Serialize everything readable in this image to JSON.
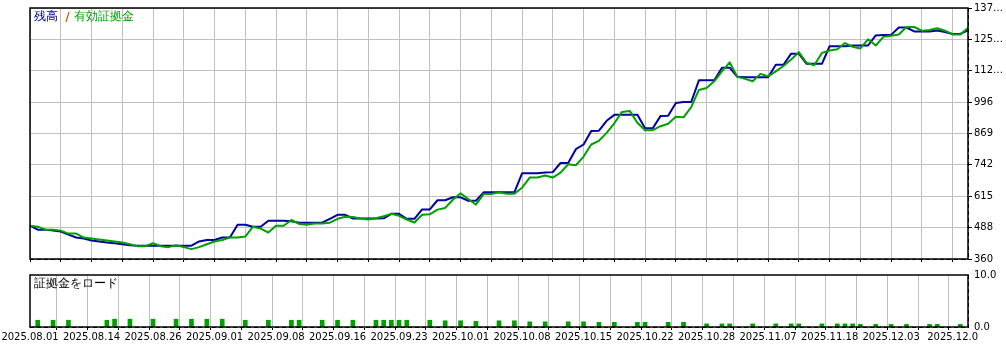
{
  "chart_data": [
    {
      "type": "line",
      "legend": "top left",
      "tick_labels": "y",
      "grid": true,
      "marker": "none",
      "line_style": "solid",
      "categories": [
        "2025.08.01",
        null,
        null,
        null,
        null,
        null,
        null,
        null,
        "2025.08.14",
        null,
        null,
        null,
        null,
        null,
        null,
        null,
        "2025.08.26",
        null,
        null,
        null,
        null,
        null,
        null,
        null,
        "2025.09.01",
        null,
        null,
        null,
        null,
        null,
        null,
        null,
        "2025.09.08",
        null,
        null,
        null,
        null,
        null,
        null,
        null,
        "2025.09.16",
        null,
        null,
        null,
        null,
        null,
        null,
        null,
        "2025.09.23",
        null,
        null,
        null,
        null,
        null,
        null,
        null,
        "2025.10.01",
        null,
        null,
        null,
        null,
        null,
        null,
        null,
        "2025.10.08",
        null,
        null,
        null,
        null,
        null,
        null,
        null,
        "2025.10.15",
        null,
        null,
        null,
        null,
        null,
        null,
        null,
        "2025.10.22",
        null,
        null,
        null,
        null,
        null,
        null,
        null,
        "2025.10.28",
        null,
        null,
        null,
        null,
        null,
        null,
        null,
        "2025.11.07",
        null,
        null,
        null,
        null,
        null,
        null,
        null,
        "2025.11.18",
        null,
        null,
        null,
        null,
        null,
        null,
        null,
        "2025.12.03",
        null,
        null,
        null,
        null,
        null,
        null,
        null,
        "2025.12.0",
        null,
        null
      ],
      "ylim": [
        360,
        1377
      ],
      "yticks": [
        360,
        488,
        615,
        742,
        869,
        996,
        {
          "value": 1123,
          "label": "112…"
        },
        {
          "value": 1250,
          "label": "125…"
        },
        {
          "value": 1377,
          "label": "137…"
        }
      ],
      "series": [
        {
          "name": "有効証拠金",
          "color": "#00a000",
          "values": [
            495,
            491,
            479,
            479,
            475,
            463,
            463,
            447,
            443,
            439,
            435,
            431,
            427,
            420,
            412,
            412,
            424,
            412,
            408,
            416,
            408,
            400,
            408,
            420,
            431,
            437,
            447,
            447,
            451,
            491,
            483,
            467,
            495,
            495,
            518,
            502,
            499,
            504,
            504,
            507,
            523,
            531,
            530,
            524,
            520,
            525,
            533,
            543,
            535,
            520,
            508,
            539,
            541,
            560,
            567,
            600,
            626,
            603,
            580,
            623,
            623,
            630,
            624,
            624,
            649,
            690,
            690,
            698,
            690,
            710,
            744,
            740,
            775,
            824,
            839,
            871,
            910,
            956,
            960,
            912,
            882,
            882,
            898,
            908,
            936,
            934,
            975,
            1045,
            1053,
            1080,
            1120,
            1157,
            1098,
            1090,
            1080,
            1110,
            1100,
            1120,
            1142,
            1168,
            1198,
            1155,
            1145,
            1195,
            1205,
            1210,
            1235,
            1220,
            1213,
            1250,
            1225,
            1260,
            1265,
            1270,
            1300,
            1300,
            1285,
            1288,
            1295,
            1285,
            1270,
            1270,
            1296
          ]
        },
        {
          "name": "残高",
          "color": "#0000a0",
          "values": [
            495,
            479,
            479,
            475,
            471,
            459,
            447,
            443,
            435,
            431,
            427,
            424,
            420,
            416,
            414,
            414,
            414,
            414,
            414,
            414,
            414,
            414,
            431,
            437,
            437,
            447,
            447,
            499,
            499,
            491,
            491,
            515,
            515,
            515,
            513,
            507,
            507,
            507,
            507,
            523,
            539,
            539,
            524,
            524,
            524,
            524,
            525,
            543,
            543,
            523,
            523,
            561,
            561,
            598,
            598,
            610,
            610,
            596,
            596,
            630,
            630,
            630,
            630,
            630,
            707,
            707,
            707,
            710,
            712,
            749,
            749,
            805,
            824,
            879,
            880,
            920,
            944,
            944,
            944,
            944,
            890,
            890,
            939,
            940,
            992,
            996,
            996,
            1084,
            1084,
            1084,
            1135,
            1135,
            1098,
            1096,
            1096,
            1096,
            1096,
            1147,
            1147,
            1192,
            1192,
            1151,
            1151,
            1151,
            1222,
            1222,
            1222,
            1225,
            1225,
            1225,
            1266,
            1268,
            1268,
            1298,
            1298,
            1282,
            1282,
            1282,
            1286,
            1280,
            1272,
            1272,
            1286
          ]
        }
      ]
    },
    {
      "type": "bar",
      "title": "証拠金をロード",
      "grid": "x",
      "color": "#00a000",
      "categories": [
        "2025.08.01",
        null,
        null,
        null,
        null,
        null,
        null,
        null,
        "2025.08.14",
        null,
        null,
        null,
        null,
        null,
        null,
        null,
        "2025.08.26",
        null,
        null,
        null,
        null,
        null,
        null,
        null,
        "2025.09.01",
        null,
        null,
        null,
        null,
        null,
        null,
        null,
        "2025.09.08",
        null,
        null,
        null,
        null,
        null,
        null,
        null,
        "2025.09.16",
        null,
        null,
        null,
        null,
        null,
        null,
        null,
        "2025.09.23",
        null,
        null,
        null,
        null,
        null,
        null,
        null,
        "2025.10.01",
        null,
        null,
        null,
        null,
        null,
        null,
        null,
        "2025.10.08",
        null,
        null,
        null,
        null,
        null,
        null,
        null,
        "2025.10.15",
        null,
        null,
        null,
        null,
        null,
        null,
        null,
        "2025.10.22",
        null,
        null,
        null,
        null,
        null,
        null,
        null,
        "2025.10.28",
        null,
        null,
        null,
        null,
        null,
        null,
        null,
        "2025.11.07",
        null,
        null,
        null,
        null,
        null,
        null,
        null,
        "2025.11.18",
        null,
        null,
        null,
        null,
        null,
        null,
        null,
        "2025.12.03",
        null,
        null,
        null,
        null,
        null,
        null,
        null,
        "2025.12.0",
        null,
        null
      ],
      "ylim": [
        0,
        10
      ],
      "yticks": [
        {
          "value": 0,
          "label": "0.0"
        },
        {
          "value": 10,
          "label": "10.0"
        }
      ],
      "values": [
        null,
        1.3,
        null,
        1.3,
        null,
        1.3,
        null,
        null,
        null,
        null,
        1.3,
        1.5,
        null,
        1.5,
        null,
        null,
        1.5,
        null,
        null,
        1.5,
        null,
        1.5,
        null,
        1.5,
        null,
        1.5,
        null,
        null,
        1.3,
        null,
        null,
        1.3,
        null,
        null,
        1.3,
        1.3,
        null,
        null,
        1.3,
        null,
        1.3,
        null,
        1.3,
        null,
        null,
        1.3,
        1.3,
        1.3,
        1.3,
        1.3,
        null,
        null,
        1.3,
        null,
        1.2,
        null,
        1.2,
        null,
        1.1,
        null,
        null,
        1.2,
        null,
        1.2,
        null,
        1.0,
        null,
        1.0,
        null,
        null,
        1.0,
        null,
        1.0,
        null,
        0.9,
        null,
        0.9,
        null,
        null,
        0.9,
        0.9,
        null,
        null,
        0.9,
        null,
        0.9,
        null,
        null,
        0.6,
        null,
        0.6,
        0.6,
        null,
        null,
        0.6,
        null,
        null,
        0.6,
        null,
        0.6,
        0.6,
        null,
        null,
        0.6,
        null,
        0.6,
        0.6,
        0.6,
        0.5,
        null,
        0.5,
        null,
        0.5,
        null,
        0.5,
        null,
        null,
        0.5,
        0.5,
        null,
        null,
        0.5,
        null
      ]
    }
  ]
}
